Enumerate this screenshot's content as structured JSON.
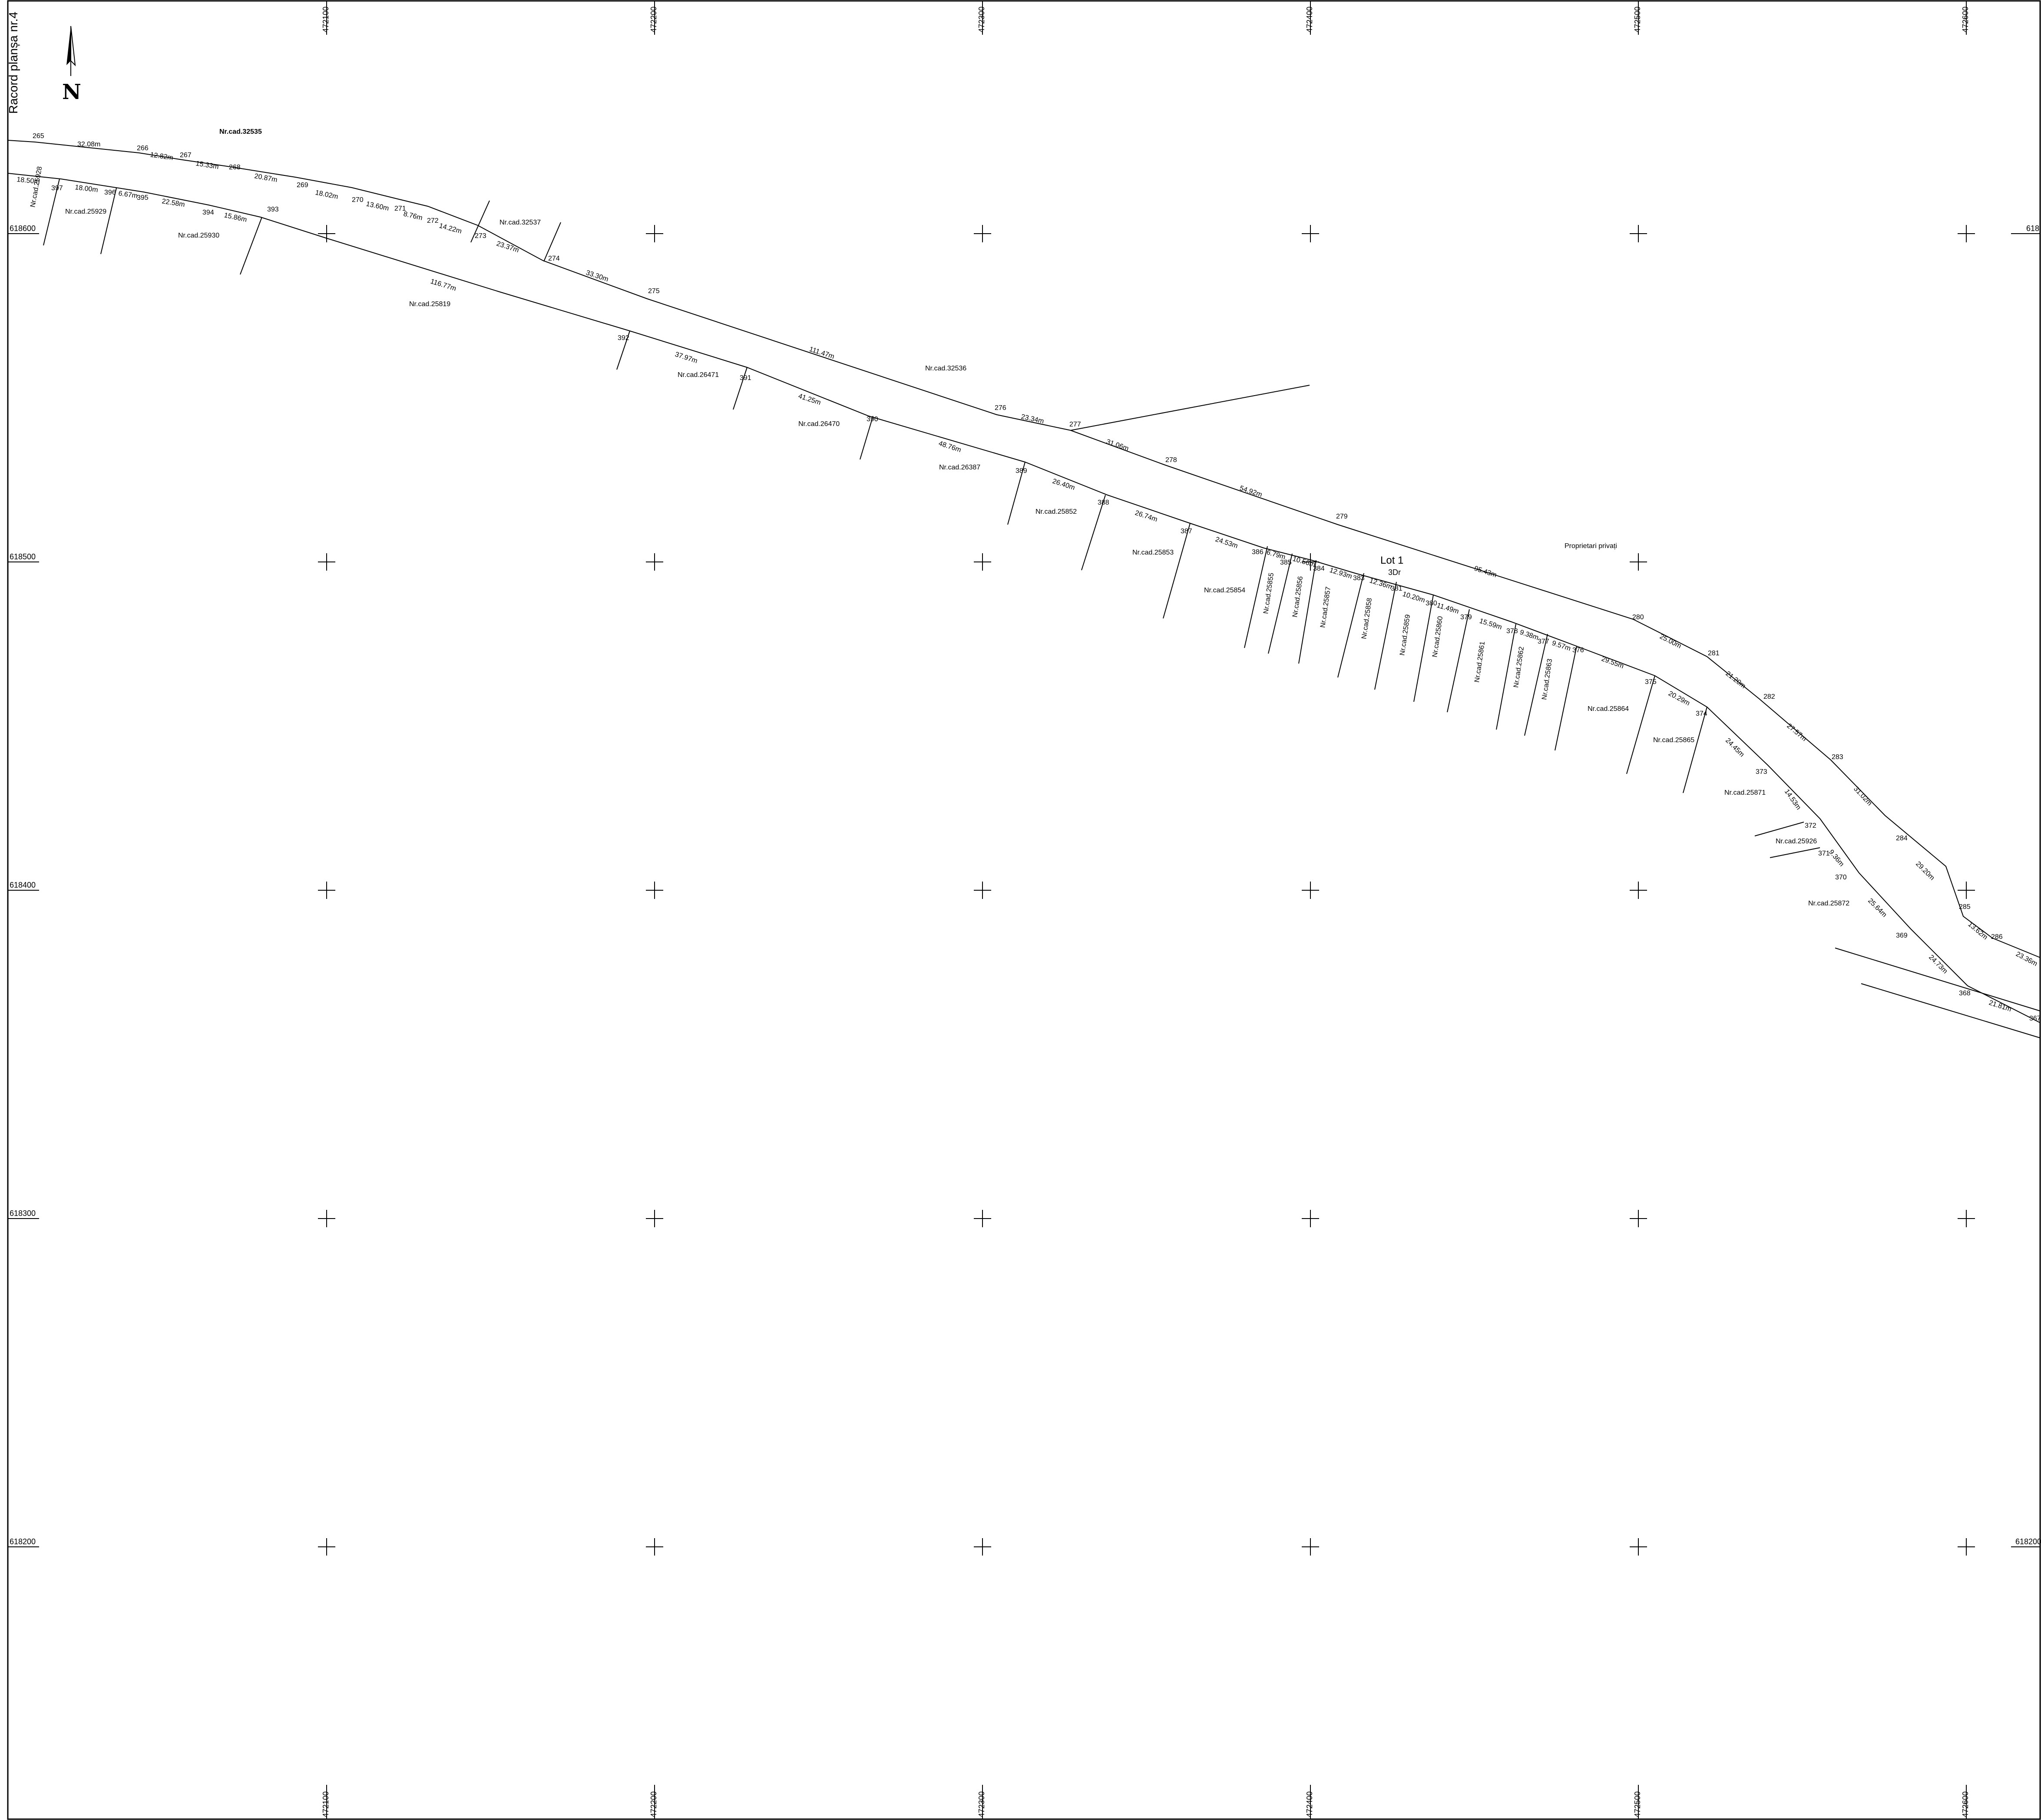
{
  "sheet": {
    "title": "Racord planșa nr.4",
    "north_label": "N",
    "lot_name": "Lot 1",
    "lot_code": "3Dr"
  },
  "grid": {
    "easting_labels": [
      "472100",
      "472200",
      "472300",
      "472400",
      "472500",
      "472600"
    ],
    "northing_labels": [
      "618600",
      "618500",
      "618400",
      "618300",
      "618200"
    ],
    "right_edge_labels": [
      "618",
      "618200"
    ]
  },
  "parcels": [
    "Nr.cad.32535",
    "Nr.cad.32537",
    "Nr.cad.25929",
    "Nr.cad.25930",
    "Nr.cad.25928",
    "Nr.cad.25819",
    "Nr.cad.26471",
    "Nr.cad.26470",
    "Nr.cad.26387",
    "Nr.cad.32536",
    "Nr.cad.25852",
    "Nr.cad.25853",
    "Nr.cad.25854",
    "Nr.cad.25855",
    "Nr.cad.25856",
    "Nr.cad.25857",
    "Nr.cad.25858",
    "Nr.cad.25859",
    "Nr.cad.25860",
    "Nr.cad.25861",
    "Nr.cad.25862",
    "Nr.cad.25863",
    "Nr.cad.25864",
    "Nr.cad.25865",
    "Nr.cad.25871",
    "Nr.cad.25926",
    "Nr.cad.25872",
    "Proprietari privați"
  ],
  "vertices": [
    "265",
    "266",
    "267",
    "268",
    "269",
    "270",
    "271",
    "272",
    "273",
    "274",
    "275",
    "276",
    "277",
    "278",
    "279",
    "280",
    "281",
    "282",
    "283",
    "284",
    "285",
    "286",
    "367",
    "368",
    "369",
    "370",
    "371",
    "372",
    "373",
    "374",
    "375",
    "376",
    "377",
    "378",
    "379",
    "380",
    "381",
    "383",
    "384",
    "385",
    "386",
    "387",
    "388",
    "389",
    "390",
    "391",
    "392",
    "393",
    "394",
    "395",
    "396",
    "397"
  ],
  "distances": [
    "32.08m",
    "12.82m",
    "15.33m",
    "20.87m",
    "18.02m",
    "13.60m",
    "8.76m",
    "14.22m",
    "23.37m",
    "33.30m",
    "111.47m",
    "23.34m",
    "31.06m",
    "54.92m",
    "95.43m",
    "25.00m",
    "21.20m",
    "27.57m",
    "31.02m",
    "29.20m",
    "13.62m",
    "23.36m",
    "21.81m",
    "24.73m",
    "25.64m",
    "9.36m",
    "14.53m",
    "24.45m",
    "20.29m",
    "29.55m",
    "9.57m",
    "9.38m",
    "15.59m",
    "11.49m",
    "10.20m",
    "12.36m",
    "12.93m",
    "10.56m",
    "6.79m",
    "24.53m",
    "26.74m",
    "26.40m",
    "48.76m",
    "41.25m",
    "37.97m",
    "116.77m",
    "15.86m",
    "22.58m",
    "6.67m",
    "18.00m",
    "18.50m"
  ]
}
